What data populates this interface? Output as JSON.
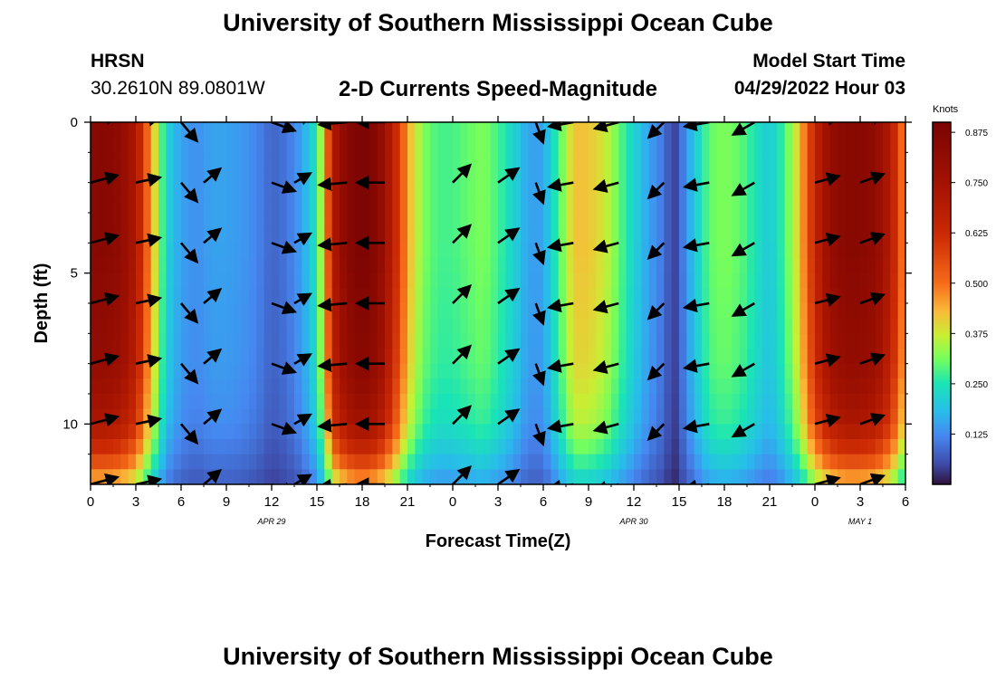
{
  "title": "University of Southern Mississippi Ocean Cube",
  "footer_title": "University of Southern Mississippi Ocean Cube",
  "station": {
    "name": "HRSN",
    "coords": "30.2610N  89.0801W"
  },
  "model": {
    "label": "Model Start Time",
    "value": "04/29/2022 Hour 03"
  },
  "colors": {
    "arrow": "#000000",
    "frame": "#000000",
    "background": "#ffffff"
  },
  "chart_data": {
    "type": "heatmap",
    "title": "2-D Currents Speed-Magnitude",
    "xlabel": "Forecast Time(Z)",
    "ylabel": "Depth (ft)",
    "x_range_hours": [
      0,
      54
    ],
    "y_range_ft": [
      0,
      12
    ],
    "x_ticks": [
      {
        "h": 0,
        "label": "0"
      },
      {
        "h": 3,
        "label": "3"
      },
      {
        "h": 6,
        "label": "6"
      },
      {
        "h": 9,
        "label": "9"
      },
      {
        "h": 12,
        "label": "12"
      },
      {
        "h": 15,
        "label": "15"
      },
      {
        "h": 18,
        "label": "18"
      },
      {
        "h": 21,
        "label": "21"
      },
      {
        "h": 24,
        "label": "0"
      },
      {
        "h": 27,
        "label": "3"
      },
      {
        "h": 30,
        "label": "6"
      },
      {
        "h": 33,
        "label": "9"
      },
      {
        "h": 36,
        "label": "12"
      },
      {
        "h": 39,
        "label": "15"
      },
      {
        "h": 42,
        "label": "18"
      },
      {
        "h": 45,
        "label": "21"
      },
      {
        "h": 48,
        "label": "0"
      },
      {
        "h": 51,
        "label": "3"
      },
      {
        "h": 54,
        "label": "6"
      }
    ],
    "date_labels": [
      {
        "h": 12,
        "label": "APR 29"
      },
      {
        "h": 36,
        "label": "APR 30"
      },
      {
        "h": 51,
        "label": "MAY 1"
      }
    ],
    "y_ticks": [
      {
        "d": 0,
        "label": "0"
      },
      {
        "d": 5,
        "label": "5"
      },
      {
        "d": 10,
        "label": "10"
      }
    ],
    "colorbar": {
      "unit": "Knots",
      "range": [
        0.0,
        0.9
      ],
      "tick_values": [
        0.125,
        0.25,
        0.375,
        0.5,
        0.625,
        0.75,
        0.875
      ],
      "tick_labels": [
        "0.125",
        "0.250",
        "0.375",
        "0.500",
        "0.625",
        "0.750",
        "0.875"
      ],
      "stops": [
        {
          "v": 0.0,
          "c": "#30123b"
        },
        {
          "v": 0.05,
          "c": "#3e4aa8"
        },
        {
          "v": 0.12,
          "c": "#4687f0"
        },
        {
          "v": 0.18,
          "c": "#28bceb"
        },
        {
          "v": 0.25,
          "c": "#1ae4b6"
        },
        {
          "v": 0.31,
          "c": "#72fe5e"
        },
        {
          "v": 0.37,
          "c": "#c8ef34"
        },
        {
          "v": 0.43,
          "c": "#faba39"
        },
        {
          "v": 0.5,
          "c": "#f66b19"
        },
        {
          "v": 0.62,
          "c": "#cb2a04"
        },
        {
          "v": 0.75,
          "c": "#a31201"
        },
        {
          "v": 0.9,
          "c": "#7a0403"
        }
      ]
    },
    "depth_profile": [
      {
        "d": 0,
        "f": 1.0
      },
      {
        "d": 4,
        "f": 1.0
      },
      {
        "d": 8,
        "f": 0.95
      },
      {
        "d": 10,
        "f": 0.85
      },
      {
        "d": 11,
        "f": 0.7
      },
      {
        "d": 12,
        "f": 0.5
      }
    ],
    "speed_series": [
      {
        "h": 0,
        "v": 0.85
      },
      {
        "h": 1,
        "v": 0.85
      },
      {
        "h": 2,
        "v": 0.82
      },
      {
        "h": 3,
        "v": 0.72
      },
      {
        "h": 4,
        "v": 0.45
      },
      {
        "h": 5,
        "v": 0.22
      },
      {
        "h": 6,
        "v": 0.15
      },
      {
        "h": 7,
        "v": 0.13
      },
      {
        "h": 8,
        "v": 0.15
      },
      {
        "h": 9,
        "v": 0.15
      },
      {
        "h": 10,
        "v": 0.14
      },
      {
        "h": 11,
        "v": 0.12
      },
      {
        "h": 12,
        "v": 0.08
      },
      {
        "h": 13,
        "v": 0.1
      },
      {
        "h": 14,
        "v": 0.15
      },
      {
        "h": 15,
        "v": 0.25
      },
      {
        "h": 15.6,
        "v": 0.45
      },
      {
        "h": 16,
        "v": 0.7
      },
      {
        "h": 17,
        "v": 0.85
      },
      {
        "h": 18,
        "v": 0.9
      },
      {
        "h": 19,
        "v": 0.85
      },
      {
        "h": 20,
        "v": 0.68
      },
      {
        "h": 21,
        "v": 0.45
      },
      {
        "h": 22,
        "v": 0.32
      },
      {
        "h": 23,
        "v": 0.28
      },
      {
        "h": 24,
        "v": 0.28
      },
      {
        "h": 25,
        "v": 0.3
      },
      {
        "h": 26,
        "v": 0.32
      },
      {
        "h": 27,
        "v": 0.28
      },
      {
        "h": 28,
        "v": 0.22
      },
      {
        "h": 29,
        "v": 0.15
      },
      {
        "h": 30,
        "v": 0.15
      },
      {
        "h": 31,
        "v": 0.28
      },
      {
        "h": 32,
        "v": 0.42
      },
      {
        "h": 33,
        "v": 0.42
      },
      {
        "h": 34,
        "v": 0.38
      },
      {
        "h": 35,
        "v": 0.3
      },
      {
        "h": 36,
        "v": 0.22
      },
      {
        "h": 37,
        "v": 0.15
      },
      {
        "h": 38,
        "v": 0.1
      },
      {
        "h": 38.6,
        "v": 0.03
      },
      {
        "h": 39.2,
        "v": 0.1
      },
      {
        "h": 40,
        "v": 0.2
      },
      {
        "h": 41,
        "v": 0.3
      },
      {
        "h": 42,
        "v": 0.32
      },
      {
        "h": 43,
        "v": 0.3
      },
      {
        "h": 44,
        "v": 0.25
      },
      {
        "h": 45,
        "v": 0.2
      },
      {
        "h": 46,
        "v": 0.28
      },
      {
        "h": 47,
        "v": 0.42
      },
      {
        "h": 48,
        "v": 0.65
      },
      {
        "h": 49,
        "v": 0.8
      },
      {
        "h": 50,
        "v": 0.85
      },
      {
        "h": 51,
        "v": 0.85
      },
      {
        "h": 52,
        "v": 0.82
      },
      {
        "h": 53,
        "v": 0.7
      },
      {
        "h": 54,
        "v": 0.45
      }
    ],
    "arrow_depths_ft": [
      0,
      2,
      4,
      6,
      8,
      10,
      12
    ],
    "arrow_columns": [
      {
        "h": 0,
        "dir": 15,
        "len": 0.9
      },
      {
        "h": 3,
        "dir": 12,
        "len": 0.8
      },
      {
        "h": 6,
        "dir": 310,
        "len": 0.8
      },
      {
        "h": 7.5,
        "dir": 40,
        "len": 0.7
      },
      {
        "h": 12,
        "dir": 340,
        "len": 0.8
      },
      {
        "h": 13.5,
        "dir": 30,
        "len": 0.6
      },
      {
        "h": 17,
        "dir": 185,
        "len": 0.9
      },
      {
        "h": 19.5,
        "dir": 180,
        "len": 0.9
      },
      {
        "h": 24,
        "dir": 45,
        "len": 0.8
      },
      {
        "h": 27,
        "dir": 35,
        "len": 0.8
      },
      {
        "h": 29.5,
        "dir": 290,
        "len": 0.7
      },
      {
        "h": 32,
        "dir": 190,
        "len": 0.8
      },
      {
        "h": 35,
        "dir": 195,
        "len": 0.8
      },
      {
        "h": 38,
        "dir": 225,
        "len": 0.7
      },
      {
        "h": 41,
        "dir": 190,
        "len": 0.8
      },
      {
        "h": 44,
        "dir": 210,
        "len": 0.8
      },
      {
        "h": 48,
        "dir": 15,
        "len": 0.8
      },
      {
        "h": 51,
        "dir": 20,
        "len": 0.8
      }
    ]
  }
}
